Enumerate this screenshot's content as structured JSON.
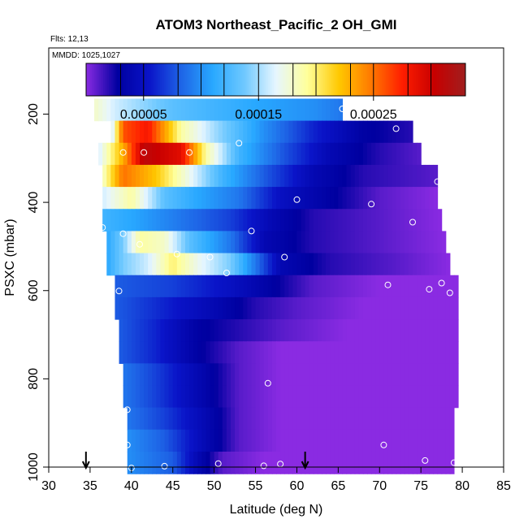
{
  "chart_data": {
    "type": "heatmap",
    "title": "ATOM3 Northeast_Pacific_2 OH_GMI",
    "flights_note": "Flts: 12,13",
    "date_note": "MMDD: 1025,1027",
    "xlabel": "Latitude (deg N)",
    "ylabel": "PSXC (mbar)",
    "xlim": [
      30,
      85
    ],
    "ylim": [
      1000,
      50
    ],
    "y_reversed": true,
    "x_ticks": [
      "30",
      "35",
      "40",
      "45",
      "50",
      "55",
      "60",
      "65",
      "70",
      "75",
      "80",
      "85"
    ],
    "y_ticks": [
      "200",
      "400",
      "600",
      "800",
      "1000"
    ],
    "colorbar": {
      "vmin": 0.0,
      "vmax": 0.00033,
      "tick_values": [
        5e-05,
        0.00015,
        0.00025
      ],
      "tick_labels": [
        "0.00005",
        "0.00015",
        "0.00025"
      ],
      "divisions": [
        0,
        3e-05,
        5e-05,
        8e-05,
        0.0001,
        0.00012,
        0.00015,
        0.00018,
        0.0002,
        0.00023,
        0.00025,
        0.00028,
        0.0003,
        0.00033
      ],
      "palette": [
        "#8a2be2",
        "#0000a0",
        "#0a14c8",
        "#1e64e6",
        "#28a8ff",
        "#6ec8ff",
        "#e6f6ff",
        "#ffff9a",
        "#ffc800",
        "#ff7a00",
        "#ff1e00",
        "#c80000",
        "#a01e1e"
      ]
    },
    "rows": [
      {
        "p": 190,
        "x": [
          35.5,
          65.5
        ],
        "v": [
          [
            35.5,
            0.00018
          ],
          [
            38,
            0.00016
          ],
          [
            45,
            0.00013
          ],
          [
            55,
            0.00011
          ],
          [
            62,
            0.0001
          ],
          [
            65.5,
            9e-05
          ]
        ]
      },
      {
        "p": 240,
        "x": [
          37.5,
          74
        ],
        "v": [
          [
            37.5,
            0.00015
          ],
          [
            39,
            0.00026
          ],
          [
            42,
            0.00028
          ],
          [
            46,
            0.00019
          ],
          [
            50,
            0.00015
          ],
          [
            56,
            0.0001
          ],
          [
            62,
            6e-05
          ],
          [
            68,
            3e-05
          ],
          [
            74,
            2e-05
          ]
        ]
      },
      {
        "p": 290,
        "x": [
          36,
          75
        ],
        "v": [
          [
            36,
            0.00016
          ],
          [
            39,
            0.00023
          ],
          [
            41.5,
            0.00031
          ],
          [
            46,
            0.00029
          ],
          [
            49,
            0.00019
          ],
          [
            53,
            0.00012
          ],
          [
            58,
            8e-05
          ],
          [
            64,
            4e-05
          ],
          [
            70,
            2e-05
          ],
          [
            75,
            1e-05
          ]
        ]
      },
      {
        "p": 340,
        "x": [
          36.5,
          77
        ],
        "v": [
          [
            36.5,
            0.00018
          ],
          [
            39,
            0.00025
          ],
          [
            43,
            0.00022
          ],
          [
            47,
            0.00017
          ],
          [
            51,
            0.00012
          ],
          [
            56,
            8e-05
          ],
          [
            62,
            4e-05
          ],
          [
            68,
            2e-05
          ],
          [
            77,
            1e-05
          ]
        ]
      },
      {
        "p": 390,
        "x": [
          36.5,
          77
        ],
        "v": [
          [
            36.5,
            0.00016
          ],
          [
            40,
            0.00019
          ],
          [
            44,
            0.00013
          ],
          [
            48,
            0.00011
          ],
          [
            53,
            9e-05
          ],
          [
            58,
            5e-05
          ],
          [
            64,
            3e-05
          ],
          [
            70,
            1e-05
          ],
          [
            77,
            0.0
          ]
        ]
      },
      {
        "p": 440,
        "x": [
          36.5,
          77.5
        ],
        "v": [
          [
            36.5,
            0.00012
          ],
          [
            40,
            0.00011
          ],
          [
            46,
            9e-05
          ],
          [
            52,
            7e-05
          ],
          [
            57,
            4e-05
          ],
          [
            62,
            2e-05
          ],
          [
            70,
            1e-05
          ],
          [
            77.5,
            0.0
          ]
        ]
      },
      {
        "p": 490,
        "x": [
          37,
          78
        ],
        "v": [
          [
            37,
            0.00011
          ],
          [
            39,
            0.00014
          ],
          [
            41,
            0.00019
          ],
          [
            44,
            0.00018
          ],
          [
            47,
            0.00013
          ],
          [
            52,
            9e-05
          ],
          [
            56,
            4e-05
          ],
          [
            62,
            2e-05
          ],
          [
            70,
            1e-05
          ],
          [
            78,
            0.0
          ]
        ]
      },
      {
        "p": 540,
        "x": [
          37,
          78.5
        ],
        "v": [
          [
            37,
            0.00011
          ],
          [
            39,
            0.00014
          ],
          [
            42,
            0.00016
          ],
          [
            45,
            0.0002
          ],
          [
            48,
            0.00017
          ],
          [
            52,
            0.00014
          ],
          [
            55,
            9e-05
          ],
          [
            58,
            4e-05
          ],
          [
            64,
            2e-05
          ],
          [
            72,
            1e-05
          ],
          [
            78.5,
            0.0
          ]
        ]
      },
      {
        "p": 590,
        "x": [
          38,
          79.5
        ],
        "v": [
          [
            38,
            8e-05
          ],
          [
            45,
            7e-05
          ],
          [
            52,
            5e-05
          ],
          [
            57,
            3e-05
          ],
          [
            62,
            1e-05
          ],
          [
            70,
            0.0
          ],
          [
            79.5,
            0.0
          ]
        ]
      },
      {
        "p": 640,
        "x": [
          38,
          79.5
        ],
        "v": [
          [
            38,
            8e-05
          ],
          [
            44,
            6e-05
          ],
          [
            50,
            4e-05
          ],
          [
            55,
            2e-05
          ],
          [
            60,
            1e-05
          ],
          [
            68,
            0.0
          ],
          [
            79.5,
            0.0
          ]
        ]
      },
      {
        "p": 690,
        "x": [
          38.5,
          79.5
        ],
        "v": [
          [
            38.5,
            8e-05
          ],
          [
            43,
            6e-05
          ],
          [
            48,
            3e-05
          ],
          [
            53,
            2e-05
          ],
          [
            58,
            1e-05
          ],
          [
            66,
            0.0
          ],
          [
            79.5,
            0.0
          ]
        ]
      },
      {
        "p": 740,
        "x": [
          38.5,
          79.5
        ],
        "v": [
          [
            38.5,
            8e-05
          ],
          [
            43,
            6e-05
          ],
          [
            48,
            3e-05
          ],
          [
            53,
            1e-05
          ],
          [
            58,
            0.0
          ],
          [
            79.5,
            0.0
          ]
        ]
      },
      {
        "p": 790,
        "x": [
          39,
          79.5
        ],
        "v": [
          [
            39,
            9e-05
          ],
          [
            43,
            7e-05
          ],
          [
            48,
            4e-05
          ],
          [
            53,
            1e-05
          ],
          [
            58,
            0.0
          ],
          [
            79.5,
            0.0
          ]
        ]
      },
      {
        "p": 840,
        "x": [
          39,
          79.5
        ],
        "v": [
          [
            39,
            9e-05
          ],
          [
            43,
            7e-05
          ],
          [
            48,
            4e-05
          ],
          [
            53,
            1e-05
          ],
          [
            58,
            0.0
          ],
          [
            79.5,
            0.0
          ]
        ]
      },
      {
        "p": 890,
        "x": [
          39.5,
          79
        ],
        "v": [
          [
            39.5,
            9e-05
          ],
          [
            44,
            7e-05
          ],
          [
            49,
            4e-05
          ],
          [
            53,
            1e-05
          ],
          [
            58,
            0.0
          ],
          [
            79,
            0.0
          ]
        ]
      },
      {
        "p": 940,
        "x": [
          39.5,
          79
        ],
        "v": [
          [
            39.5,
            0.0001
          ],
          [
            44,
            8e-05
          ],
          [
            49,
            4e-05
          ],
          [
            53,
            1e-05
          ],
          [
            58,
            0.0
          ],
          [
            79,
            0.0
          ]
        ]
      },
      {
        "p": 990,
        "x": [
          39.5,
          79
        ],
        "v": [
          [
            39.5,
            0.0001
          ],
          [
            45,
            8e-05
          ],
          [
            48,
            4e-05
          ],
          [
            51,
            1e-05
          ],
          [
            56,
            0.0
          ],
          [
            79,
            0.0
          ]
        ]
      }
    ],
    "sample_points": [
      [
        65.5,
        188
      ],
      [
        72,
        233
      ],
      [
        39,
        287
      ],
      [
        41.5,
        287
      ],
      [
        47,
        287
      ],
      [
        53,
        266
      ],
      [
        77,
        353
      ],
      [
        60,
        394
      ],
      [
        69,
        404
      ],
      [
        74,
        445
      ],
      [
        36.5,
        457
      ],
      [
        39,
        471
      ],
      [
        54.5,
        465
      ],
      [
        41,
        495
      ],
      [
        45.5,
        517
      ],
      [
        49.5,
        524
      ],
      [
        58.5,
        524
      ],
      [
        51.5,
        560
      ],
      [
        71,
        587
      ],
      [
        76,
        597
      ],
      [
        77.5,
        583
      ],
      [
        78.5,
        605
      ],
      [
        38.5,
        601
      ],
      [
        39.5,
        870
      ],
      [
        56.5,
        810
      ],
      [
        39.5,
        950
      ],
      [
        70.5,
        950
      ],
      [
        75.5,
        985
      ],
      [
        79,
        990
      ],
      [
        44,
        998
      ],
      [
        40,
        1002
      ],
      [
        50.5,
        992
      ],
      [
        56,
        997
      ],
      [
        58,
        993
      ]
    ],
    "arrows": [
      34.5,
      61
    ]
  }
}
